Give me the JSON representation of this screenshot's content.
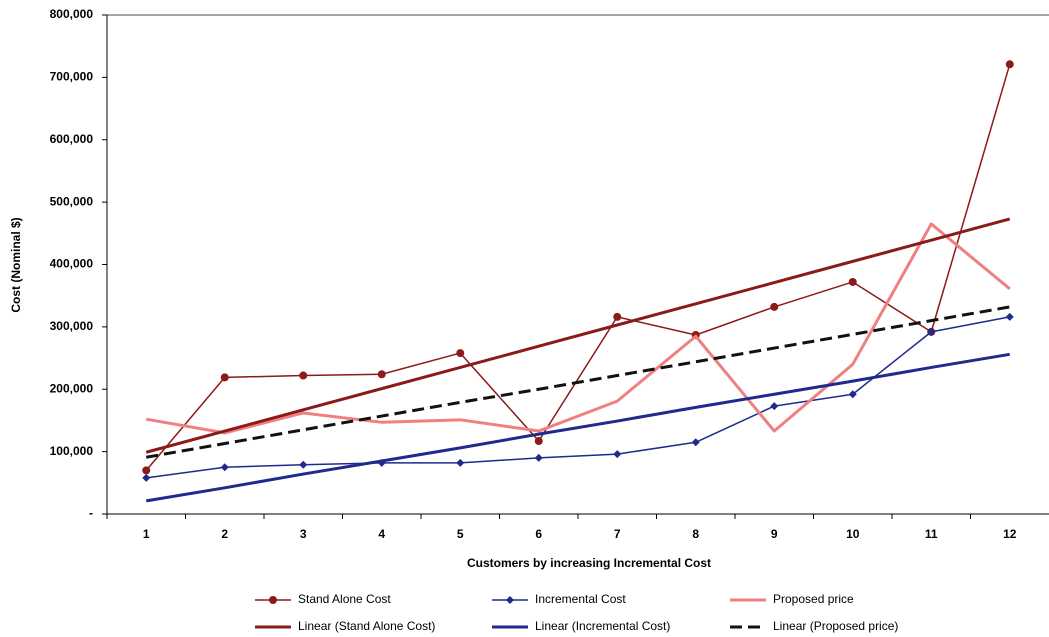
{
  "chart_data": {
    "type": "line",
    "y_label": "Cost (Nominal $)",
    "x_label": "Customers by increasing Incremental Cost",
    "categories": [
      "1",
      "2",
      "3",
      "4",
      "5",
      "6",
      "7",
      "8",
      "9",
      "10",
      "11",
      "12"
    ],
    "ylim": [
      0,
      800000
    ],
    "yticks": [
      {
        "value": 0,
        "label": "-"
      },
      {
        "value": 100000,
        "label": "100,000"
      },
      {
        "value": 200000,
        "label": "200,000"
      },
      {
        "value": 300000,
        "label": "300,000"
      },
      {
        "value": 400000,
        "label": "400,000"
      },
      {
        "value": 500000,
        "label": "500,000"
      },
      {
        "value": 600000,
        "label": "600,000"
      },
      {
        "value": 700000,
        "label": "700,000"
      },
      {
        "value": 800000,
        "label": "800,000"
      }
    ],
    "grid": false,
    "legend": "bottom",
    "series": [
      {
        "name": "Stand Alone Cost",
        "color": "#8b1a1a",
        "marker": "circle",
        "dash": false,
        "line_width": 1.5,
        "values": [
          70000,
          219000,
          222000,
          224000,
          258000,
          117000,
          316000,
          287000,
          332000,
          372000,
          292000,
          721000
        ]
      },
      {
        "name": "Incremental Cost",
        "color": "#1f2a8c",
        "marker": "diamond",
        "dash": false,
        "line_width": 1.5,
        "values": [
          58000,
          75000,
          79000,
          82000,
          82000,
          90000,
          96000,
          115000,
          173000,
          192000,
          292000,
          316000
        ]
      },
      {
        "name": "Proposed price",
        "color": "#f08080",
        "marker": "none",
        "dash": false,
        "line_width": 3,
        "values": [
          152000,
          130000,
          162000,
          147000,
          151000,
          133000,
          181000,
          285000,
          133000,
          240000,
          465000,
          361000
        ]
      },
      {
        "name": "Linear (Stand Alone Cost)",
        "color": "#8b1a1a",
        "marker": "none",
        "dash": false,
        "line_width": 3,
        "values": [
          99000,
          133000,
          167000,
          201000,
          235000,
          269000,
          303000,
          337000,
          371000,
          405000,
          439000,
          473000
        ]
      },
      {
        "name": "Linear (Incremental Cost)",
        "color": "#1f2a8c",
        "marker": "none",
        "dash": false,
        "line_width": 3,
        "values": [
          21000,
          42000,
          64000,
          85000,
          106000,
          128000,
          149000,
          171000,
          192000,
          213000,
          235000,
          256000
        ]
      },
      {
        "name": "Linear (Proposed price)",
        "color": "#111111",
        "marker": "none",
        "dash": true,
        "line_width": 3,
        "values": [
          91000,
          113000,
          135000,
          157000,
          179000,
          200000,
          222000,
          244000,
          266000,
          288000,
          310000,
          332000
        ]
      }
    ]
  }
}
